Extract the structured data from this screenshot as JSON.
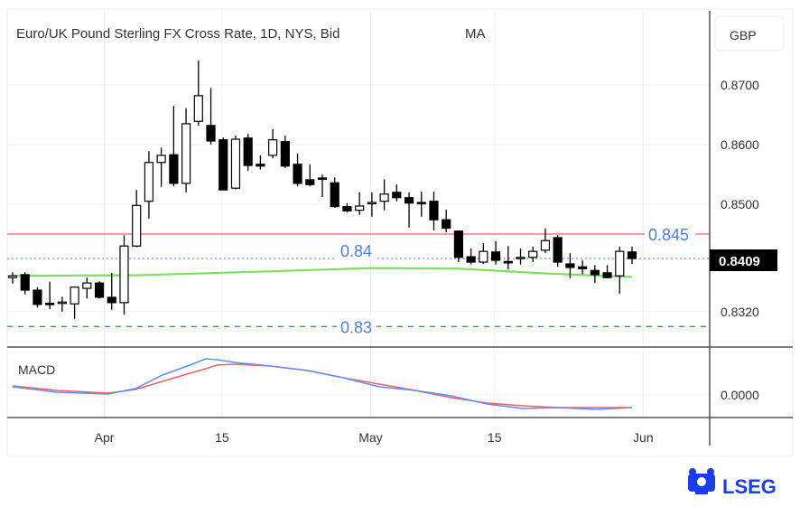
{
  "chart_data": {
    "type": "candlestick",
    "title": "Euro/UK Pound Sterling FX Cross Rate, 1D, NYS, Bid",
    "indicator_label": "MA",
    "currency_label": "GBP",
    "price_ylim": [
      0.8285,
      0.874
    ],
    "price_ticks": [
      "0.8700",
      "0.8600",
      "0.8500",
      "0.8320"
    ],
    "price_tick_values": [
      0.87,
      0.86,
      0.85,
      0.832
    ],
    "x_ticks": [
      {
        "label": "Apr",
        "index": 7.4
      },
      {
        "label": "15",
        "index": 16.9
      },
      {
        "label": "May",
        "index": 28.9
      },
      {
        "label": "15",
        "index": 38.9
      },
      {
        "label": "Jun",
        "index": 50.9
      }
    ],
    "ohlc": [
      [
        0.8377,
        0.8386,
        0.8367,
        0.838
      ],
      [
        0.8382,
        0.8386,
        0.8349,
        0.8356
      ],
      [
        0.8356,
        0.8361,
        0.8327,
        0.8332
      ],
      [
        0.8334,
        0.837,
        0.8324,
        0.8333
      ],
      [
        0.8335,
        0.8345,
        0.832,
        0.8336
      ],
      [
        0.8333,
        0.8362,
        0.8308,
        0.8361
      ],
      [
        0.8359,
        0.8377,
        0.8342,
        0.8368
      ],
      [
        0.8368,
        0.8371,
        0.8342,
        0.8344
      ],
      [
        0.8344,
        0.8385,
        0.8323,
        0.8335
      ],
      [
        0.8335,
        0.8448,
        0.8315,
        0.843
      ],
      [
        0.843,
        0.8524,
        0.8428,
        0.8498
      ],
      [
        0.8505,
        0.8589,
        0.8476,
        0.857
      ],
      [
        0.857,
        0.8595,
        0.8529,
        0.8582
      ],
      [
        0.8583,
        0.8665,
        0.853,
        0.8535
      ],
      [
        0.8535,
        0.8661,
        0.852,
        0.8635
      ],
      [
        0.8639,
        0.8741,
        0.8632,
        0.8682
      ],
      [
        0.8632,
        0.8695,
        0.86,
        0.8606
      ],
      [
        0.8608,
        0.8612,
        0.8524,
        0.8524
      ],
      [
        0.8527,
        0.8615,
        0.8525,
        0.8609
      ],
      [
        0.8611,
        0.8618,
        0.8556,
        0.8565
      ],
      [
        0.8567,
        0.8582,
        0.8558,
        0.8564
      ],
      [
        0.8582,
        0.8626,
        0.8577,
        0.8608
      ],
      [
        0.8605,
        0.8615,
        0.8561,
        0.8564
      ],
      [
        0.8567,
        0.8585,
        0.853,
        0.8535
      ],
      [
        0.8541,
        0.8567,
        0.853,
        0.8533
      ],
      [
        0.8544,
        0.855,
        0.8512,
        0.8542
      ],
      [
        0.8536,
        0.8545,
        0.8494,
        0.8496
      ],
      [
        0.8496,
        0.8502,
        0.8486,
        0.8489
      ],
      [
        0.849,
        0.852,
        0.8482,
        0.8497
      ],
      [
        0.8502,
        0.852,
        0.8479,
        0.8503
      ],
      [
        0.8505,
        0.8542,
        0.849,
        0.8517
      ],
      [
        0.852,
        0.8533,
        0.8505,
        0.8511
      ],
      [
        0.8511,
        0.852,
        0.8461,
        0.8502
      ],
      [
        0.8503,
        0.8521,
        0.8479,
        0.8501
      ],
      [
        0.8505,
        0.8521,
        0.8456,
        0.8474
      ],
      [
        0.8474,
        0.8491,
        0.8453,
        0.846
      ],
      [
        0.8455,
        0.8456,
        0.8403,
        0.8411
      ],
      [
        0.8412,
        0.8426,
        0.8399,
        0.8403
      ],
      [
        0.8403,
        0.8435,
        0.84,
        0.8421
      ],
      [
        0.842,
        0.8438,
        0.8399,
        0.8406
      ],
      [
        0.8404,
        0.843,
        0.8391,
        0.8403
      ],
      [
        0.841,
        0.8426,
        0.8399,
        0.8411
      ],
      [
        0.8411,
        0.8429,
        0.8403,
        0.8421
      ],
      [
        0.8423,
        0.8459,
        0.8418,
        0.8439
      ],
      [
        0.8444,
        0.8448,
        0.8395,
        0.8403
      ],
      [
        0.84,
        0.8418,
        0.8376,
        0.8394
      ],
      [
        0.8395,
        0.8406,
        0.8383,
        0.8392
      ],
      [
        0.8389,
        0.8398,
        0.8368,
        0.8382
      ],
      [
        0.8385,
        0.8398,
        0.8376,
        0.8377
      ],
      [
        0.838,
        0.8429,
        0.835,
        0.8421
      ],
      [
        0.842,
        0.8429,
        0.84,
        0.8409
      ]
    ],
    "moving_average": {
      "color": "#7ee05a",
      "points": [
        [
          0,
          0.838
        ],
        [
          10,
          0.8381
        ],
        [
          20,
          0.8387
        ],
        [
          29,
          0.8393
        ],
        [
          36,
          0.8392
        ],
        [
          43,
          0.8384
        ],
        [
          50,
          0.8378
        ]
      ]
    },
    "levels": [
      {
        "label": "0.845",
        "value": 0.845,
        "style": "solid",
        "color": "#f0606a"
      },
      {
        "label": "0.84",
        "value": 0.8409,
        "style": "dotted",
        "color": "#6e9cf7"
      },
      {
        "label": "0.83",
        "value": 0.8295,
        "style": "dashed",
        "color": "#4a7ff0"
      }
    ],
    "last_price": "0.8409",
    "macd": {
      "label": "MACD",
      "tick": "0.0000",
      "ylim": [
        -0.0003,
        0.0005
      ],
      "index": [
        0,
        3.6,
        7.7,
        9.9,
        12.1,
        14.3,
        15.6,
        16.5,
        17.9,
        20.8,
        23.8,
        26.7,
        29.6,
        32.5,
        35.4,
        38.3,
        41.2,
        44.1,
        47.1,
        50
      ],
      "macd_line": [
        9e-05,
        3e-05,
        1e-05,
        7e-05,
        0.00022,
        0.00033,
        0.0004,
        0.00039,
        0.00036,
        0.00032,
        0.00027,
        0.00019,
        9e-05,
        5e-05,
        -1e-05,
        -0.0001,
        -0.00015,
        -0.00014,
        -0.00016,
        -0.00014
      ],
      "signal_line": [
        0.0001,
        5e-05,
        2e-05,
        6e-05,
        0.00015,
        0.00024,
        0.00029,
        0.00033,
        0.00034,
        0.00032,
        0.00027,
        0.00019,
        0.00012,
        5e-05,
        -3e-05,
        -9e-05,
        -0.00012,
        -0.00014,
        -0.00014,
        -0.00014
      ],
      "macd_color": "#5b8ff5",
      "signal_color": "#f0606a"
    }
  },
  "brand": {
    "name": "LSEG",
    "color": "#1a3cf0"
  }
}
